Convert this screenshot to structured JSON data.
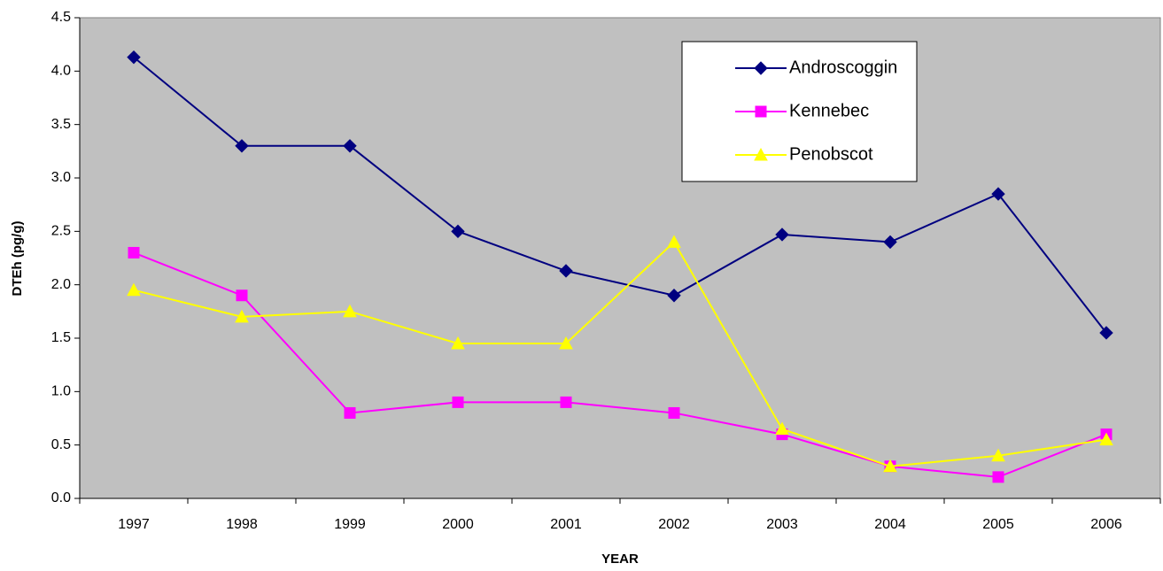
{
  "chart_data": {
    "type": "line",
    "x_label": "YEAR",
    "y_label": "DTEh (pg/g)",
    "categories": [
      "1997",
      "1998",
      "1999",
      "2000",
      "2001",
      "2002",
      "2003",
      "2004",
      "2005",
      "2006"
    ],
    "series": [
      {
        "name": "Androscoggin",
        "color": "#000080",
        "marker": "diamond",
        "values": [
          4.13,
          3.3,
          3.3,
          2.5,
          2.13,
          1.9,
          2.47,
          2.4,
          2.85,
          1.55
        ]
      },
      {
        "name": "Kennebec",
        "color": "#ff00ff",
        "marker": "square",
        "values": [
          2.3,
          1.9,
          0.8,
          0.9,
          0.9,
          0.8,
          0.6,
          0.3,
          0.2,
          0.6
        ]
      },
      {
        "name": "Penobscot",
        "color": "#ffff00",
        "marker": "triangle",
        "values": [
          1.95,
          1.7,
          1.75,
          1.45,
          1.45,
          2.4,
          0.65,
          0.3,
          0.4,
          0.55
        ]
      }
    ],
    "ylim": [
      0,
      4.5
    ],
    "yticks": [
      {
        "value": 0,
        "label": "0.0"
      },
      {
        "value": 0.5,
        "label": "0.5"
      },
      {
        "value": 1,
        "label": "1.0"
      },
      {
        "value": 1.5,
        "label": "1.5"
      },
      {
        "value": 2,
        "label": "2.0"
      },
      {
        "value": 2.5,
        "label": "2.5"
      },
      {
        "value": 3,
        "label": "3.0"
      },
      {
        "value": 3.5,
        "label": "3.5"
      },
      {
        "value": 4,
        "label": "4.0"
      },
      {
        "value": 4.5,
        "label": "4.5"
      }
    ],
    "plot_background": "#c0c0c0",
    "grid": false,
    "legend": "upper right"
  }
}
